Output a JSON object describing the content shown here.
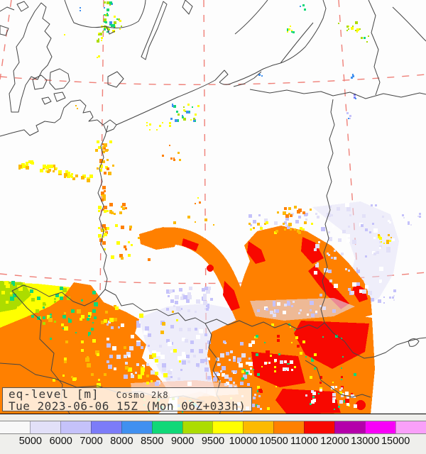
{
  "title": {
    "product": "eq-level [m]",
    "model": "Cosmo 2k8",
    "datetime": "Tue 2023-06-06 15Z (Mon 06Z+033h)"
  },
  "legend": {
    "colors": [
      "#f8f8f8",
      "#e2e0f8",
      "#c5c2fa",
      "#7c7cf8",
      "#4090f0",
      "#10d878",
      "#acdc00",
      "#ffff00",
      "#fcba00",
      "#ff8000",
      "#f80800",
      "#b400aa",
      "#f800f8",
      "#f9a0f9"
    ],
    "labels": [
      "5000",
      "6000",
      "7000",
      "8000",
      "8500",
      "9000",
      "9500",
      "10000",
      "10500",
      "11000",
      "12000",
      "13000",
      "15000"
    ]
  },
  "palette": {
    "white": "#ffffff",
    "pale1": "#e2e0f8",
    "pale2": "#c5c2fa",
    "purple": "#7c7cf8",
    "blue": "#4090f0",
    "green": "#10d878",
    "chartreuse": "#acdc00",
    "yellow": "#ffff00",
    "amber": "#fcba00",
    "orange": "#ff8000",
    "red": "#f80800",
    "salmon": "#fbcdb9"
  },
  "map": {
    "colors": {
      "background": "#fdfdfd",
      "border": "#454545",
      "graticule": "#ef8078",
      "frame": "#000000",
      "panel": "#efefec",
      "title_text": "#383838"
    }
  }
}
